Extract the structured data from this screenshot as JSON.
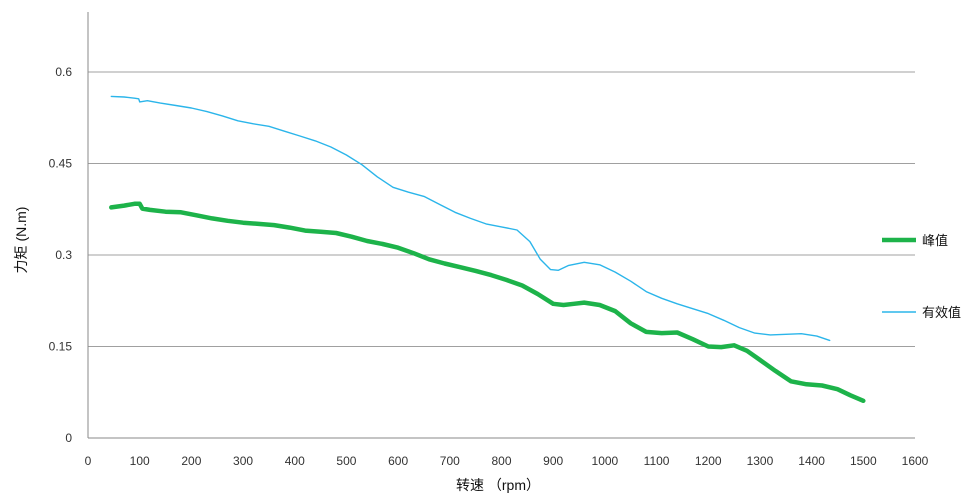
{
  "chart_data": {
    "type": "line",
    "title": "",
    "xlabel": "转速  （rpm）",
    "ylabel": "力矩 (N.m)",
    "xlim": [
      0,
      1600
    ],
    "ylim": [
      0,
      0.6
    ],
    "grid": true,
    "legend_position": "right",
    "x_ticks": [
      "0",
      "100",
      "200",
      "300",
      "400",
      "500",
      "600",
      "700",
      "800",
      "900",
      "1000",
      "1100",
      "1200",
      "1300",
      "1400",
      "1500",
      "1600"
    ],
    "y_ticks": [
      "0",
      "0.15",
      "0.3",
      "0.45",
      "0.6"
    ],
    "series": [
      {
        "name": "峰值",
        "color": "#1db34a",
        "points": [
          [
            45,
            0.378
          ],
          [
            70,
            0.381
          ],
          [
            90,
            0.384
          ],
          [
            100,
            0.384
          ],
          [
            105,
            0.376
          ],
          [
            120,
            0.374
          ],
          [
            150,
            0.371
          ],
          [
            180,
            0.37
          ],
          [
            210,
            0.365
          ],
          [
            240,
            0.36
          ],
          [
            270,
            0.356
          ],
          [
            300,
            0.353
          ],
          [
            330,
            0.351
          ],
          [
            360,
            0.349
          ],
          [
            390,
            0.345
          ],
          [
            420,
            0.34
          ],
          [
            450,
            0.338
          ],
          [
            480,
            0.336
          ],
          [
            510,
            0.33
          ],
          [
            540,
            0.323
          ],
          [
            570,
            0.318
          ],
          [
            600,
            0.312
          ],
          [
            630,
            0.303
          ],
          [
            660,
            0.293
          ],
          [
            690,
            0.286
          ],
          [
            720,
            0.28
          ],
          [
            750,
            0.274
          ],
          [
            780,
            0.267
          ],
          [
            810,
            0.259
          ],
          [
            840,
            0.25
          ],
          [
            870,
            0.236
          ],
          [
            900,
            0.22
          ],
          [
            920,
            0.218
          ],
          [
            940,
            0.22
          ],
          [
            960,
            0.222
          ],
          [
            990,
            0.218
          ],
          [
            1020,
            0.208
          ],
          [
            1050,
            0.188
          ],
          [
            1080,
            0.174
          ],
          [
            1110,
            0.172
          ],
          [
            1140,
            0.173
          ],
          [
            1170,
            0.162
          ],
          [
            1200,
            0.15
          ],
          [
            1225,
            0.149
          ],
          [
            1250,
            0.152
          ],
          [
            1275,
            0.143
          ],
          [
            1300,
            0.128
          ],
          [
            1330,
            0.11
          ],
          [
            1360,
            0.093
          ],
          [
            1390,
            0.088
          ],
          [
            1420,
            0.086
          ],
          [
            1450,
            0.08
          ],
          [
            1475,
            0.07
          ],
          [
            1500,
            0.061
          ]
        ]
      },
      {
        "name": "有效值",
        "color": "#2bb5ea",
        "points": [
          [
            45,
            0.56
          ],
          [
            70,
            0.559
          ],
          [
            90,
            0.557
          ],
          [
            98,
            0.556
          ],
          [
            100,
            0.551
          ],
          [
            115,
            0.553
          ],
          [
            140,
            0.549
          ],
          [
            170,
            0.545
          ],
          [
            200,
            0.541
          ],
          [
            230,
            0.535
          ],
          [
            260,
            0.528
          ],
          [
            290,
            0.52
          ],
          [
            320,
            0.515
          ],
          [
            350,
            0.511
          ],
          [
            380,
            0.503
          ],
          [
            410,
            0.495
          ],
          [
            440,
            0.487
          ],
          [
            470,
            0.477
          ],
          [
            500,
            0.464
          ],
          [
            530,
            0.448
          ],
          [
            560,
            0.428
          ],
          [
            590,
            0.411
          ],
          [
            620,
            0.403
          ],
          [
            650,
            0.396
          ],
          [
            680,
            0.383
          ],
          [
            710,
            0.37
          ],
          [
            740,
            0.36
          ],
          [
            770,
            0.351
          ],
          [
            800,
            0.346
          ],
          [
            830,
            0.341
          ],
          [
            855,
            0.322
          ],
          [
            875,
            0.293
          ],
          [
            895,
            0.276
          ],
          [
            910,
            0.275
          ],
          [
            930,
            0.283
          ],
          [
            960,
            0.288
          ],
          [
            990,
            0.284
          ],
          [
            1020,
            0.272
          ],
          [
            1050,
            0.257
          ],
          [
            1080,
            0.24
          ],
          [
            1110,
            0.229
          ],
          [
            1140,
            0.22
          ],
          [
            1170,
            0.212
          ],
          [
            1200,
            0.204
          ],
          [
            1230,
            0.193
          ],
          [
            1260,
            0.181
          ],
          [
            1290,
            0.172
          ],
          [
            1320,
            0.169
          ],
          [
            1350,
            0.17
          ],
          [
            1380,
            0.171
          ],
          [
            1410,
            0.167
          ],
          [
            1435,
            0.16
          ]
        ]
      }
    ]
  }
}
